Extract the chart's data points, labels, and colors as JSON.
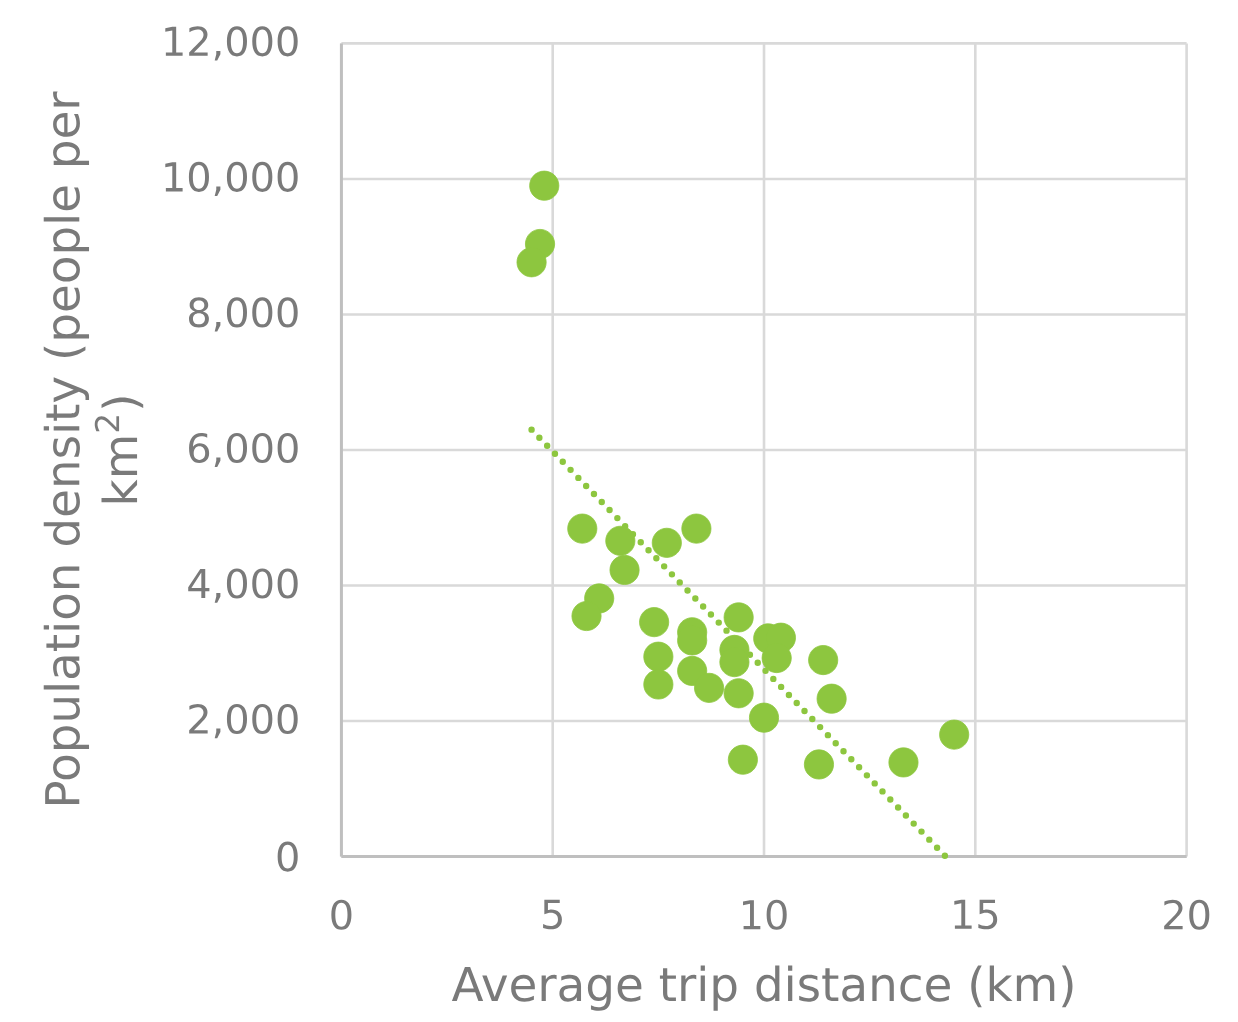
{
  "chart_data": {
    "type": "scatter",
    "xlabel": "Average trip distance (km)",
    "ylabel": "Population density (people per km$^{2}$)",
    "xlim": [
      0,
      20
    ],
    "ylim": [
      0,
      12000
    ],
    "xticks": [
      0,
      5,
      10,
      15,
      20
    ],
    "yticks": [
      0,
      {
        "value": 2000,
        "label": "2,000"
      },
      {
        "value": 4000,
        "label": "4,000"
      },
      {
        "value": 6000,
        "label": "6,000"
      },
      {
        "value": 8000,
        "label": "8,000"
      },
      {
        "value": 10000,
        "label": "10,000"
      },
      {
        "value": 12000,
        "label": "12,000"
      }
    ],
    "grid": true,
    "series": [
      {
        "color": "#8dc63f",
        "marker": "circle",
        "x": [
          4.8,
          4.7,
          4.5,
          5.7,
          6.6,
          7.7,
          8.4,
          6.7,
          6.1,
          5.8,
          7.4,
          8.3,
          8.3,
          9.4,
          7.5,
          9.3,
          9.3,
          10.1,
          10.4,
          10.3,
          11.4,
          7.5,
          8.3,
          8.7,
          9.4,
          11.6,
          10.0,
          9.5,
          11.3,
          13.3,
          14.5
        ],
        "values": [
          9900,
          9040,
          8770,
          4840,
          4660,
          4630,
          4840,
          4230,
          3810,
          3550,
          3460,
          3310,
          3190,
          3530,
          2950,
          3050,
          2870,
          3220,
          3230,
          2930,
          2900,
          2540,
          2740,
          2490,
          2410,
          2330,
          2050,
          1430,
          1360,
          1390,
          1800
        ]
      },
      {
        "type": "line",
        "color": "#8dc63f",
        "line_style": "dotted",
        "marker": "none",
        "x": [
          4.5,
          14.3
        ],
        "values": [
          6300,
          0
        ]
      }
    ]
  }
}
